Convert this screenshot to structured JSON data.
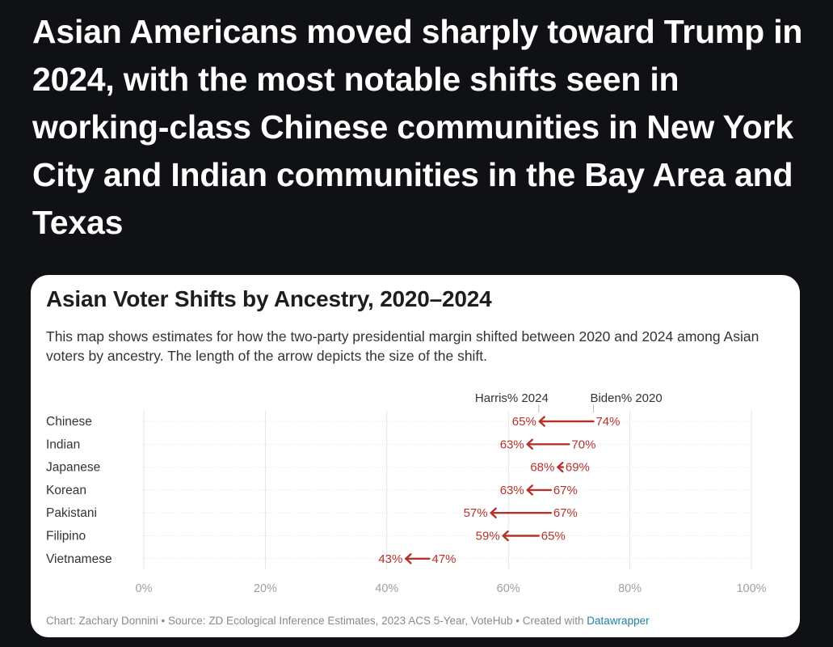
{
  "headline": "Asian Americans moved sharply toward Trump in 2024, with the most notable shifts seen in working-class Chinese communities in New York City and Indian communities in the Bay Area and Texas",
  "colors": {
    "page_bg": "#0f1114",
    "card_bg": "#ffffff",
    "arrow": "#b5322c",
    "label": "#b5322c",
    "link": "#1d81a2"
  },
  "chart_data": {
    "type": "arrow-plot",
    "title": "Asian Voter Shifts by Ancestry, 2020–2024",
    "subtitle": "This map shows estimates for how the two-party presidential margin shifted between 2020 and 2024 among Asian voters by ancestry. The length of the arrow depicts the size of the shift.",
    "categories": [
      "Chinese",
      "Indian",
      "Japanese",
      "Korean",
      "Pakistani",
      "Filipino",
      "Vietnamese"
    ],
    "series": [
      {
        "name": "Biden% 2020",
        "values": [
          74,
          70,
          69,
          67,
          67,
          65,
          47
        ]
      },
      {
        "name": "Harris% 2024",
        "values": [
          65,
          63,
          68,
          63,
          57,
          59,
          43
        ]
      }
    ],
    "value_suffix": "%",
    "xlim": [
      0,
      100
    ],
    "xticks": [
      "0%",
      "20%",
      "40%",
      "60%",
      "80%",
      "100%"
    ],
    "xtick_values": [
      0,
      20,
      40,
      60,
      80,
      100
    ],
    "grid": true
  },
  "footer": {
    "credit": "Chart: Zachary Donnini • Source: ZD Ecological Inference Estimates, 2023 ACS 5-Year, VoteHub • Created with ",
    "link": "Datawrapper"
  }
}
